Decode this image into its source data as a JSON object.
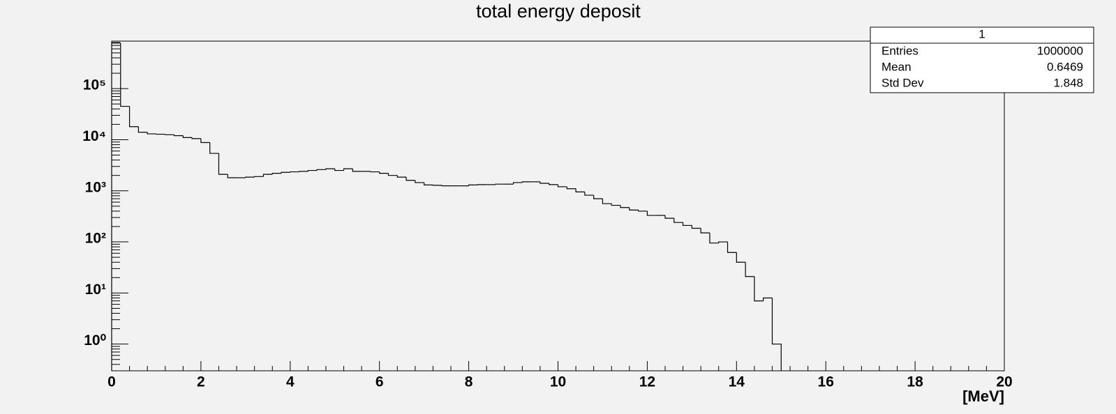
{
  "chart_data": {
    "type": "histogram",
    "title": "total energy deposit",
    "x_label": "[MeV]",
    "bins": [
      0,
      0.2,
      0.4,
      0.6,
      0.8,
      1,
      1.2,
      1.4,
      1.6,
      1.8,
      2,
      2.2,
      2.4,
      2.6,
      2.8,
      3,
      3.2,
      3.4,
      3.6,
      3.8,
      4,
      4.2,
      4.4,
      4.6,
      4.8,
      5,
      5.2,
      5.4,
      5.6,
      5.8,
      6,
      6.2,
      6.4,
      6.6,
      6.8,
      7,
      7.2,
      7.4,
      7.6,
      7.8,
      8,
      8.2,
      8.4,
      8.6,
      8.8,
      9,
      9.2,
      9.4,
      9.6,
      9.8,
      10,
      10.2,
      10.4,
      10.6,
      10.8,
      11,
      11.2,
      11.4,
      11.6,
      11.8,
      12,
      12.2,
      12.4,
      12.6,
      12.8,
      13,
      13.2,
      13.4,
      13.6,
      13.8,
      14,
      14.2,
      14.4,
      14.6,
      14.8,
      15
    ],
    "values": [
      780000,
      45000,
      18000,
      14000,
      13000,
      12800,
      12500,
      12000,
      11000,
      10500,
      8800,
      5400,
      2100,
      1800,
      1800,
      1850,
      1900,
      2100,
      2200,
      2300,
      2350,
      2400,
      2500,
      2600,
      2700,
      2500,
      2700,
      2400,
      2400,
      2350,
      2200,
      2000,
      1850,
      1600,
      1450,
      1300,
      1280,
      1250,
      1250,
      1250,
      1300,
      1320,
      1320,
      1350,
      1350,
      1450,
      1500,
      1500,
      1400,
      1320,
      1200,
      1100,
      950,
      820,
      700,
      560,
      520,
      470,
      420,
      400,
      330,
      330,
      290,
      240,
      210,
      185,
      150,
      95,
      100,
      62,
      40,
      21,
      7,
      8,
      1
    ],
    "color": "#000000",
    "xlim": [
      0,
      20
    ],
    "xticks": [
      0,
      2,
      4,
      6,
      8,
      10,
      12,
      14,
      16,
      18,
      20
    ],
    "ylim": [
      0.3,
      850000
    ],
    "log_y": true,
    "yticks": [
      {
        "value": 1,
        "label": "10⁰"
      },
      {
        "value": 10,
        "label": "10¹"
      },
      {
        "value": 100,
        "label": "10²"
      },
      {
        "value": 1000,
        "label": "10³"
      },
      {
        "value": 10000,
        "label": "10⁴"
      },
      {
        "value": 100000,
        "label": "10⁵"
      }
    ],
    "stats": {
      "title": "1",
      "rows": [
        {
          "label": "Entries",
          "value": 1000000
        },
        {
          "label": "Mean",
          "value": 0.6469
        },
        {
          "label": "Std Dev",
          "value": 1.848
        }
      ]
    }
  }
}
